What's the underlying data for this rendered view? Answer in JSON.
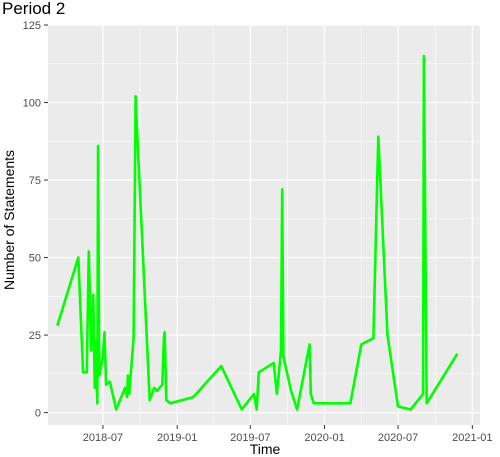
{
  "chart_data": {
    "type": "line",
    "title": "Period 2",
    "xlabel": "Time",
    "ylabel": "Number of Statements",
    "x_scale": "date",
    "xlim": [
      "2018-02-15",
      "2021-01-20"
    ],
    "ylim": [
      -4,
      125
    ],
    "x_ticks": [
      {
        "date": "2018-07-01",
        "label": "2018-07"
      },
      {
        "date": "2019-01-01",
        "label": "2019-01"
      },
      {
        "date": "2019-07-01",
        "label": "2019-07"
      },
      {
        "date": "2020-01-01",
        "label": "2020-01"
      },
      {
        "date": "2020-07-01",
        "label": "2020-07"
      },
      {
        "date": "2021-01-01",
        "label": "2021-01"
      }
    ],
    "y_ticks": [
      0,
      25,
      50,
      75,
      100,
      125
    ],
    "grid": true,
    "legend": "none",
    "panel_background": "#ebebeb",
    "grid_color": "#ffffff",
    "series": [
      {
        "color": "#00ff00",
        "points": [
          [
            "2018-03-10",
            28
          ],
          [
            "2018-05-01",
            50
          ],
          [
            "2018-05-13",
            13
          ],
          [
            "2018-05-22",
            13
          ],
          [
            "2018-05-27",
            52
          ],
          [
            "2018-06-02",
            20
          ],
          [
            "2018-06-07",
            38
          ],
          [
            "2018-06-11",
            8
          ],
          [
            "2018-06-15",
            23
          ],
          [
            "2018-06-17",
            3
          ],
          [
            "2018-06-19",
            86
          ],
          [
            "2018-06-22",
            12
          ],
          [
            "2018-07-01",
            18
          ],
          [
            "2018-07-05",
            26
          ],
          [
            "2018-07-09",
            9
          ],
          [
            "2018-07-18",
            10
          ],
          [
            "2018-08-03",
            1
          ],
          [
            "2018-08-25",
            8
          ],
          [
            "2018-08-30",
            5
          ],
          [
            "2018-09-01",
            12
          ],
          [
            "2018-09-04",
            6
          ],
          [
            "2018-09-15",
            24
          ],
          [
            "2018-09-20",
            102
          ],
          [
            "2018-09-23",
            93
          ],
          [
            "2018-10-25",
            4
          ],
          [
            "2018-11-05",
            8
          ],
          [
            "2018-11-12",
            7
          ],
          [
            "2018-11-25",
            9
          ],
          [
            "2018-11-29",
            24
          ],
          [
            "2018-12-01",
            26
          ],
          [
            "2018-12-05",
            4
          ],
          [
            "2018-12-15",
            3
          ],
          [
            "2019-02-10",
            5
          ],
          [
            "2019-04-20",
            15
          ],
          [
            "2019-06-10",
            1
          ],
          [
            "2019-07-10",
            6
          ],
          [
            "2019-07-17",
            1
          ],
          [
            "2019-07-22",
            13
          ],
          [
            "2019-08-28",
            16
          ],
          [
            "2019-09-05",
            6
          ],
          [
            "2019-09-15",
            20
          ],
          [
            "2019-09-18",
            72
          ],
          [
            "2019-09-21",
            18
          ],
          [
            "2019-10-10",
            7
          ],
          [
            "2019-10-25",
            1
          ],
          [
            "2019-11-25",
            22
          ],
          [
            "2019-11-28",
            6
          ],
          [
            "2019-12-05",
            3
          ],
          [
            "2020-03-05",
            3
          ],
          [
            "2020-04-01",
            22
          ],
          [
            "2020-05-01",
            24
          ],
          [
            "2020-05-13",
            89
          ],
          [
            "2020-06-05",
            25
          ],
          [
            "2020-07-01",
            2
          ],
          [
            "2020-08-01",
            1
          ],
          [
            "2020-09-01",
            6
          ],
          [
            "2020-09-03",
            115
          ],
          [
            "2020-09-10",
            3
          ],
          [
            "2020-11-25",
            19
          ]
        ]
      }
    ]
  }
}
